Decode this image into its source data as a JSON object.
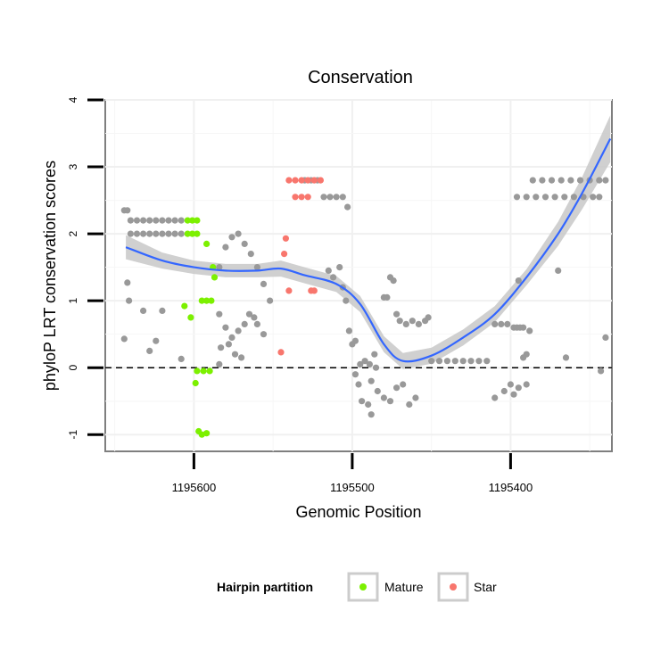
{
  "chart_data": {
    "type": "scatter",
    "title": "Conservation",
    "xlabel": "Genomic Position",
    "ylabel": "phyloP LRT conservation scores",
    "x_reversed": true,
    "xlim": [
      1195656,
      1195336
    ],
    "ylim": [
      -1.25,
      4
    ],
    "x_ticks": [
      1195600,
      1195500,
      1195400
    ],
    "x_tick_labels": [
      "1195600",
      "1195500",
      "1195400"
    ],
    "y_ticks": [
      -1,
      0,
      1,
      2,
      3,
      4
    ],
    "y_tick_labels": [
      "-1",
      "0",
      "1",
      "2",
      "3",
      "4"
    ],
    "reference_line": {
      "y": 0,
      "style": "dashed",
      "color": "#000000"
    },
    "grid": true,
    "legend": {
      "title": "Hairpin partition",
      "position": "bottom",
      "entries": [
        {
          "label": "Mature",
          "color": "#7cf000"
        },
        {
          "label": "Star",
          "color": "#f8766d"
        }
      ]
    },
    "colors": {
      "other": "#999999",
      "mature": "#7cf000",
      "star": "#f8766d",
      "smooth": "#3366ff",
      "band": "#c8c8c8"
    },
    "series": [
      {
        "name": "Other",
        "points": [
          [
            1195644,
            2.35
          ],
          [
            1195642,
            2.35
          ],
          [
            1195640,
            2.2
          ],
          [
            1195636,
            2.2
          ],
          [
            1195632,
            2.2
          ],
          [
            1195628,
            2.2
          ],
          [
            1195624,
            2.2
          ],
          [
            1195620,
            2.2
          ],
          [
            1195616,
            2.2
          ],
          [
            1195612,
            2.2
          ],
          [
            1195608,
            2.2
          ],
          [
            1195640,
            2.0
          ],
          [
            1195636,
            2.0
          ],
          [
            1195632,
            2.0
          ],
          [
            1195628,
            2.0
          ],
          [
            1195624,
            2.0
          ],
          [
            1195620,
            2.0
          ],
          [
            1195616,
            2.0
          ],
          [
            1195612,
            2.0
          ],
          [
            1195608,
            2.0
          ],
          [
            1195642,
            1.27
          ],
          [
            1195641,
            1.0
          ],
          [
            1195644,
            0.43
          ],
          [
            1195632,
            0.85
          ],
          [
            1195628,
            0.25
          ],
          [
            1195624,
            0.4
          ],
          [
            1195620,
            0.85
          ],
          [
            1195608,
            0.13
          ],
          [
            1195584,
            1.5
          ],
          [
            1195580,
            1.8
          ],
          [
            1195576,
            1.95
          ],
          [
            1195572,
            2.0
          ],
          [
            1195568,
            1.85
          ],
          [
            1195564,
            1.7
          ],
          [
            1195560,
            1.5
          ],
          [
            1195556,
            1.25
          ],
          [
            1195552,
            1.0
          ],
          [
            1195584,
            0.8
          ],
          [
            1195580,
            0.6
          ],
          [
            1195576,
            0.45
          ],
          [
            1195572,
            0.55
          ],
          [
            1195568,
            0.65
          ],
          [
            1195565,
            0.8
          ],
          [
            1195562,
            0.75
          ],
          [
            1195560,
            0.65
          ],
          [
            1195556,
            0.5
          ],
          [
            1195583,
            0.3
          ],
          [
            1195578,
            0.35
          ],
          [
            1195574,
            0.2
          ],
          [
            1195570,
            0.15
          ],
          [
            1195584,
            0.05
          ],
          [
            1195530,
            2.8
          ],
          [
            1195526,
            2.8
          ],
          [
            1195522,
            2.8
          ],
          [
            1195518,
            2.55
          ],
          [
            1195514,
            2.55
          ],
          [
            1195510,
            2.55
          ],
          [
            1195506,
            2.55
          ],
          [
            1195503,
            2.4
          ],
          [
            1195515,
            1.45
          ],
          [
            1195512,
            1.35
          ],
          [
            1195508,
            1.5
          ],
          [
            1195506,
            1.2
          ],
          [
            1195504,
            1.0
          ],
          [
            1195502,
            0.55
          ],
          [
            1195500,
            0.35
          ],
          [
            1195498,
            0.4
          ],
          [
            1195495,
            0.05
          ],
          [
            1195492,
            0.1
          ],
          [
            1195489,
            0.05
          ],
          [
            1195485,
            0.0
          ],
          [
            1195498,
            -0.1
          ],
          [
            1195496,
            -0.25
          ],
          [
            1195488,
            -0.2
          ],
          [
            1195484,
            -0.35
          ],
          [
            1195480,
            -0.45
          ],
          [
            1195476,
            -0.5
          ],
          [
            1195472,
            -0.3
          ],
          [
            1195468,
            -0.25
          ],
          [
            1195464,
            -0.55
          ],
          [
            1195460,
            -0.45
          ],
          [
            1195490,
            -0.55
          ],
          [
            1195488,
            -0.7
          ],
          [
            1195494,
            -0.5
          ],
          [
            1195486,
            0.2
          ],
          [
            1195480,
            1.05
          ],
          [
            1195478,
            1.05
          ],
          [
            1195476,
            1.35
          ],
          [
            1195474,
            1.3
          ],
          [
            1195472,
            0.8
          ],
          [
            1195470,
            0.7
          ],
          [
            1195466,
            0.65
          ],
          [
            1195462,
            0.7
          ],
          [
            1195458,
            0.65
          ],
          [
            1195454,
            0.7
          ],
          [
            1195452,
            0.75
          ],
          [
            1195450,
            0.1
          ],
          [
            1195445,
            0.1
          ],
          [
            1195440,
            0.1
          ],
          [
            1195435,
            0.1
          ],
          [
            1195430,
            0.1
          ],
          [
            1195425,
            0.1
          ],
          [
            1195420,
            0.1
          ],
          [
            1195415,
            0.1
          ],
          [
            1195410,
            0.65
          ],
          [
            1195406,
            0.65
          ],
          [
            1195402,
            0.65
          ],
          [
            1195398,
            0.6
          ],
          [
            1195396,
            0.6
          ],
          [
            1195394,
            0.6
          ],
          [
            1195392,
            0.6
          ],
          [
            1195388,
            0.55
          ],
          [
            1195395,
            1.3
          ],
          [
            1195390,
            0.2
          ],
          [
            1195392,
            0.15
          ],
          [
            1195410,
            -0.45
          ],
          [
            1195404,
            -0.35
          ],
          [
            1195400,
            -0.25
          ],
          [
            1195398,
            -0.4
          ],
          [
            1195395,
            -0.3
          ],
          [
            1195390,
            -0.25
          ],
          [
            1195396,
            2.55
          ],
          [
            1195390,
            2.55
          ],
          [
            1195384,
            2.55
          ],
          [
            1195378,
            2.55
          ],
          [
            1195372,
            2.55
          ],
          [
            1195366,
            2.55
          ],
          [
            1195360,
            2.55
          ],
          [
            1195354,
            2.55
          ],
          [
            1195348,
            2.55
          ],
          [
            1195344,
            2.55
          ],
          [
            1195386,
            2.8
          ],
          [
            1195380,
            2.8
          ],
          [
            1195374,
            2.8
          ],
          [
            1195368,
            2.8
          ],
          [
            1195362,
            2.8
          ],
          [
            1195356,
            2.8
          ],
          [
            1195350,
            2.8
          ],
          [
            1195344,
            2.8
          ],
          [
            1195340,
            2.8
          ],
          [
            1195370,
            1.45
          ],
          [
            1195365,
            0.15
          ],
          [
            1195343,
            -0.05
          ],
          [
            1195340,
            0.45
          ]
        ]
      },
      {
        "name": "Mature",
        "points": [
          [
            1195604,
            2.2
          ],
          [
            1195601,
            2.2
          ],
          [
            1195598,
            2.2
          ],
          [
            1195604,
            2.0
          ],
          [
            1195601,
            2.0
          ],
          [
            1195598,
            2.0
          ],
          [
            1195592,
            1.85
          ],
          [
            1195588,
            1.5
          ],
          [
            1195587,
            1.35
          ],
          [
            1195606,
            0.92
          ],
          [
            1195595,
            1.0
          ],
          [
            1195592,
            1.0
          ],
          [
            1195589,
            1.0
          ],
          [
            1195602,
            0.75
          ],
          [
            1195598,
            -0.05
          ],
          [
            1195594,
            -0.05
          ],
          [
            1195590,
            -0.05
          ],
          [
            1195599,
            -0.23
          ],
          [
            1195597,
            -0.95
          ],
          [
            1195595,
            -1.0
          ],
          [
            1195592,
            -0.98
          ]
        ]
      },
      {
        "name": "Star",
        "points": [
          [
            1195540,
            2.8
          ],
          [
            1195536,
            2.8
          ],
          [
            1195532,
            2.8
          ],
          [
            1195528,
            2.8
          ],
          [
            1195524,
            2.8
          ],
          [
            1195520,
            2.8
          ],
          [
            1195536,
            2.55
          ],
          [
            1195532,
            2.55
          ],
          [
            1195528,
            2.55
          ],
          [
            1195542,
            1.93
          ],
          [
            1195543,
            1.7
          ],
          [
            1195540,
            1.15
          ],
          [
            1195526,
            1.15
          ],
          [
            1195524,
            1.15
          ],
          [
            1195545,
            0.23
          ]
        ]
      }
    ],
    "smooth_curve": {
      "x": [
        1195643,
        1195620,
        1195600,
        1195580,
        1195560,
        1195545,
        1195530,
        1195510,
        1195495,
        1195480,
        1195468,
        1195450,
        1195430,
        1195410,
        1195390,
        1195370,
        1195355,
        1195337
      ],
      "y": [
        1.8,
        1.6,
        1.5,
        1.45,
        1.45,
        1.48,
        1.38,
        1.25,
        0.95,
        0.35,
        0.1,
        0.18,
        0.45,
        0.8,
        1.35,
        2.0,
        2.6,
        3.42
      ],
      "band_halfwidth": [
        0.18,
        0.12,
        0.1,
        0.1,
        0.1,
        0.12,
        0.12,
        0.12,
        0.12,
        0.12,
        0.12,
        0.12,
        0.12,
        0.12,
        0.12,
        0.18,
        0.24,
        0.35
      ]
    }
  }
}
